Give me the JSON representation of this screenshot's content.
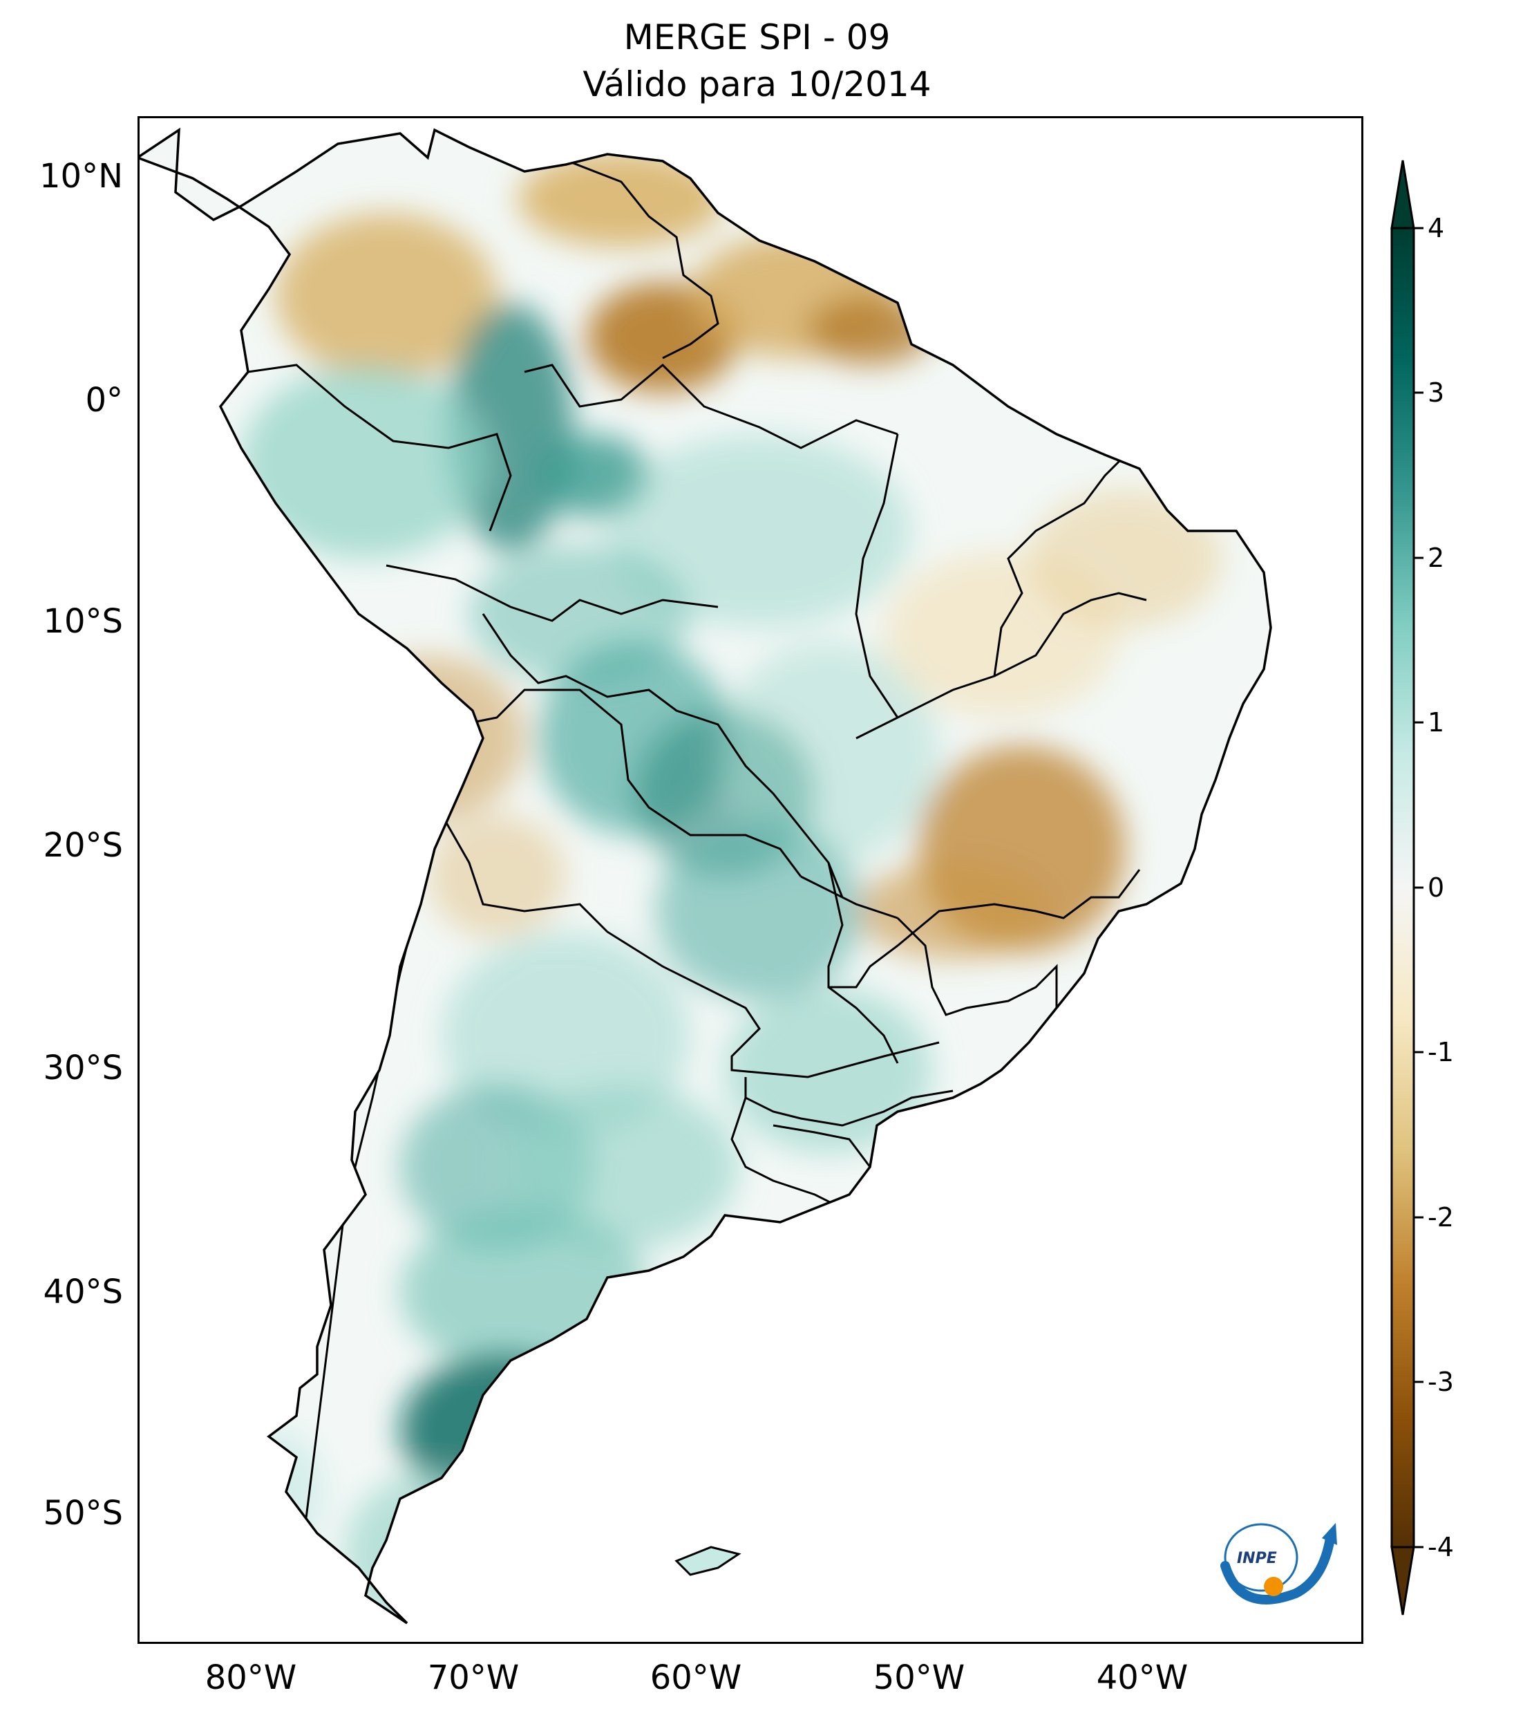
{
  "title": {
    "line1": "MERGE   SPI - 09",
    "line2": "Válido para 10/2014"
  },
  "map": {
    "region": "South America",
    "variable": "SPI - 09",
    "lat_labels": [
      "10°N",
      "0°",
      "10°S",
      "20°S",
      "30°S",
      "40°S",
      "50°S"
    ],
    "lon_labels": [
      "80°W",
      "70°W",
      "60°W",
      "50°W",
      "40°W"
    ],
    "colors": {
      "dry": "#543005",
      "wet": "#003c30",
      "neutral": "#f5f5f5",
      "border": "#000000"
    }
  },
  "colorbar": {
    "ticks": [
      "4",
      "3",
      "2",
      "1",
      "0",
      "-1",
      "-2",
      "-3",
      "-4"
    ],
    "min": -4,
    "max": 4,
    "extend": "both",
    "palette": [
      "#543005",
      "#8c510a",
      "#bf812d",
      "#dfc27d",
      "#f6e8c3",
      "#f5f5f5",
      "#c7eae5",
      "#80cdc1",
      "#35978f",
      "#01665e",
      "#003c30"
    ]
  },
  "logo": {
    "label": "INPE",
    "icon": "inpe-logo-icon"
  }
}
